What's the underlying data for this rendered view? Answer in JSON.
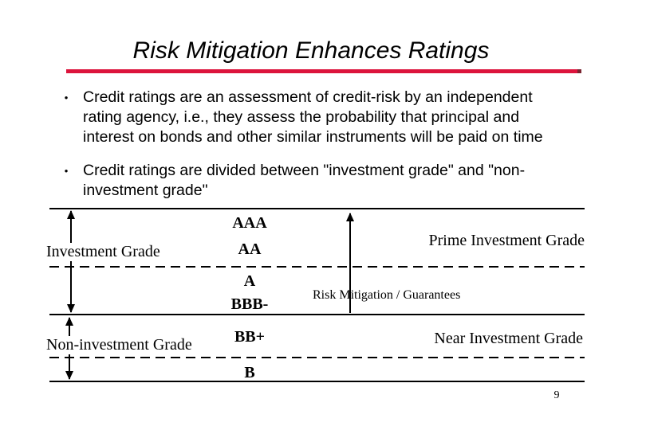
{
  "slide": {
    "title": "Risk Mitigation Enhances Ratings",
    "page_number": "9",
    "accent_color": "#DC143C"
  },
  "bullets": [
    {
      "marker": "•",
      "text": "Credit ratings are an assessment of credit-risk by an independent\nrating agency, i.e., they assess the probability that principal and\ninterest on bonds and other similar instruments will be paid on time"
    },
    {
      "marker": "•",
      "text": "Credit ratings are divided between \"investment grade\" and \"non-\ninvestment grade\""
    }
  ],
  "diagram": {
    "ratings": [
      "AAA",
      "AA",
      "A",
      "BBB-",
      "BB+",
      "B"
    ],
    "labels": {
      "investment": "Investment Grade",
      "non_investment": "Non-investment Grade",
      "prime": "Prime Investment Grade",
      "near": "Near Investment Grade",
      "risk_mitigation": "Risk Mitigation / Guarantees"
    }
  }
}
